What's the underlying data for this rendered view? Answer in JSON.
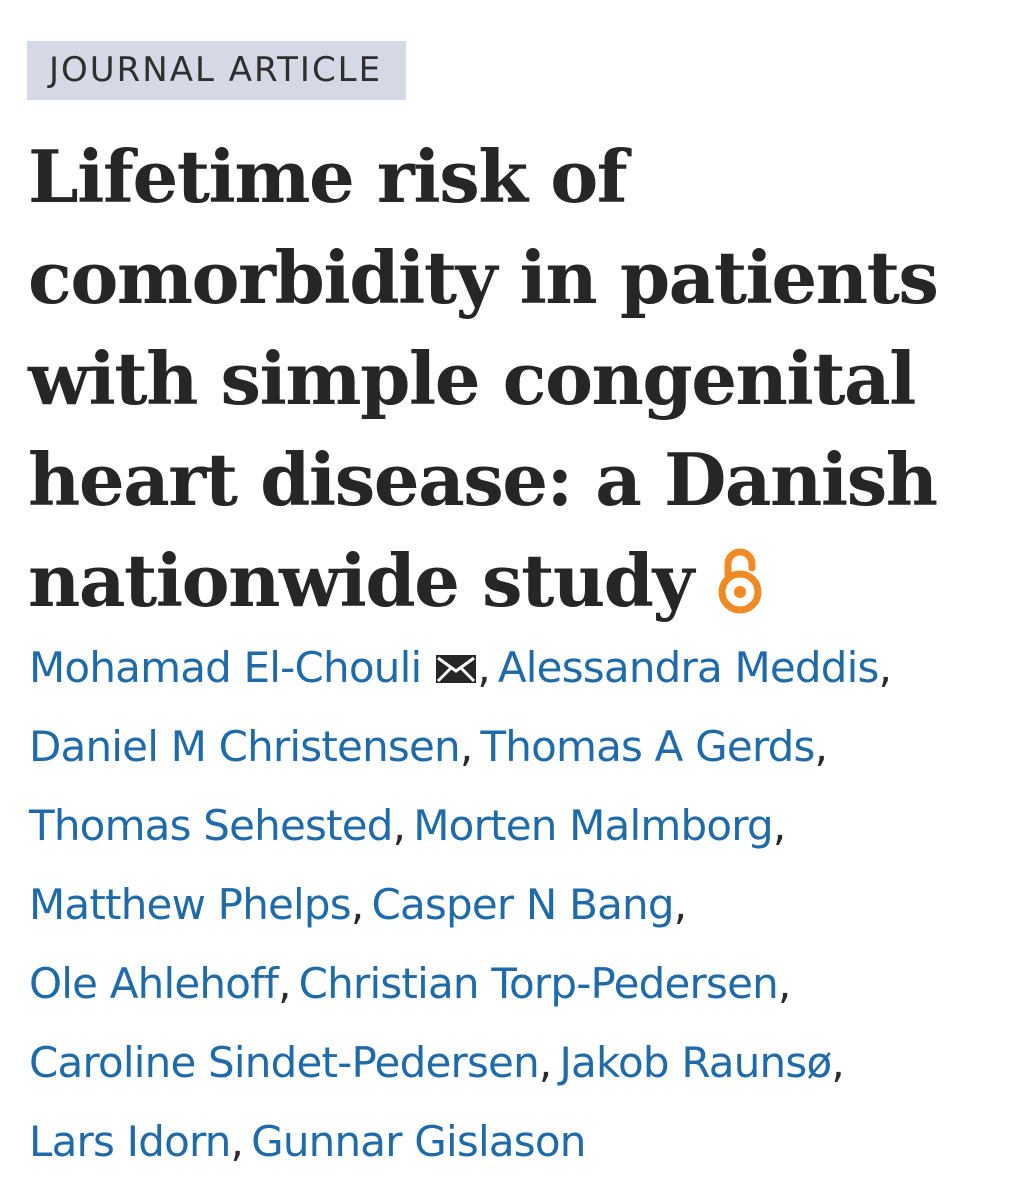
{
  "article": {
    "type_label": "JOURNAL ARTICLE",
    "title_lines": [
      "Lifetime risk of",
      "comorbidity in patients",
      "with simple congenital",
      "heart disease: a Danish",
      "nationwide study"
    ],
    "open_access_icon": "open-access-icon",
    "open_access_color": "#f08a24"
  },
  "authors": {
    "separator": ",",
    "link_color": "#1f6aa8",
    "mail_icon": "envelope-icon",
    "list": [
      "Mohamad El-Chouli",
      "Alessandra Meddis",
      "Daniel M Christensen",
      "Thomas A Gerds",
      "Thomas Sehested",
      "Morten Malmborg",
      "Matthew Phelps",
      "Casper N Bang",
      "Ole Ahlehoff",
      "Christian Torp-Pedersen",
      "Caroline Sindet-Pedersen",
      "Jakob Raunsø",
      "Lars Idorn",
      "Gunnar Gislason"
    ]
  }
}
